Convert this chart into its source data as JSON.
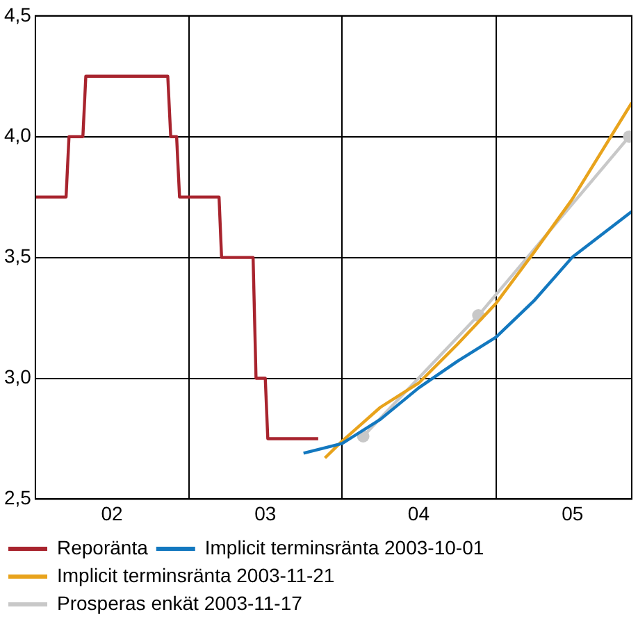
{
  "chart_data": {
    "type": "line",
    "xlim": [
      "2002-01-01",
      "2005-11-20"
    ],
    "xticks": [
      {
        "value": "2002-01-01",
        "label": null
      },
      {
        "value": "2002-07-02",
        "label": "02"
      },
      {
        "value": "2003-01-01",
        "label": null
      },
      {
        "value": "2003-07-02",
        "label": "03"
      },
      {
        "value": "2004-01-01",
        "label": null
      },
      {
        "value": "2004-07-01",
        "label": "04"
      },
      {
        "value": "2005-01-01",
        "label": null
      },
      {
        "value": "2005-07-02",
        "label": "05"
      }
    ],
    "ylim": [
      2.5,
      4.5
    ],
    "yticks": [
      {
        "value": 2.5,
        "label": "2,5"
      },
      {
        "value": 3.0,
        "label": "3,0"
      },
      {
        "value": 3.5,
        "label": "3,5"
      },
      {
        "value": 4.0,
        "label": "4,0"
      },
      {
        "value": 4.5,
        "label": "4,5"
      }
    ],
    "grid": true,
    "legend": "bottom",
    "series": [
      {
        "name": "Reporänta",
        "color": "#a8242e",
        "marker": "none",
        "x": [
          "2002-01-01",
          "2002-03-15",
          "2002-03-22",
          "2002-04-24",
          "2002-05-01",
          "2002-11-12",
          "2002-11-19",
          "2002-12-03",
          "2002-12-10",
          "2003-03-14",
          "2003-03-20",
          "2003-06-03",
          "2003-06-10",
          "2003-07-02",
          "2003-07-08",
          "2003-11-05"
        ],
        "values": [
          3.75,
          3.75,
          4.0,
          4.0,
          4.25,
          4.25,
          4.0,
          4.0,
          3.75,
          3.75,
          3.5,
          3.5,
          3.0,
          3.0,
          2.75,
          2.75
        ]
      },
      {
        "name": "Implicit terminsränta 2003-10-01",
        "color": "#1378bf",
        "marker": "none",
        "x": [
          "2003-10-01",
          "2004-01-01",
          "2004-04-01",
          "2004-07-01",
          "2004-10-01",
          "2005-01-01",
          "2005-04-01",
          "2005-07-01",
          "2005-11-20"
        ],
        "values": [
          2.69,
          2.73,
          2.83,
          2.96,
          3.07,
          3.17,
          3.32,
          3.5,
          3.69
        ]
      },
      {
        "name": "Implicit terminsränta 2003-11-21",
        "color": "#e8a31c",
        "marker": "none",
        "x": [
          "2003-11-21",
          "2004-01-01",
          "2004-04-01",
          "2004-07-01",
          "2004-10-01",
          "2005-01-01",
          "2005-04-01",
          "2005-07-01",
          "2005-11-20"
        ],
        "values": [
          2.67,
          2.74,
          2.88,
          2.98,
          3.14,
          3.31,
          3.52,
          3.74,
          4.14
        ]
      },
      {
        "name": "Prosperas enkät 2003-11-17",
        "color": "#c8c8c8",
        "marker": "circle",
        "x": [
          "2004-02-20",
          "2004-11-20",
          "2005-11-14"
        ],
        "values": [
          2.76,
          3.26,
          4.0
        ]
      }
    ]
  }
}
